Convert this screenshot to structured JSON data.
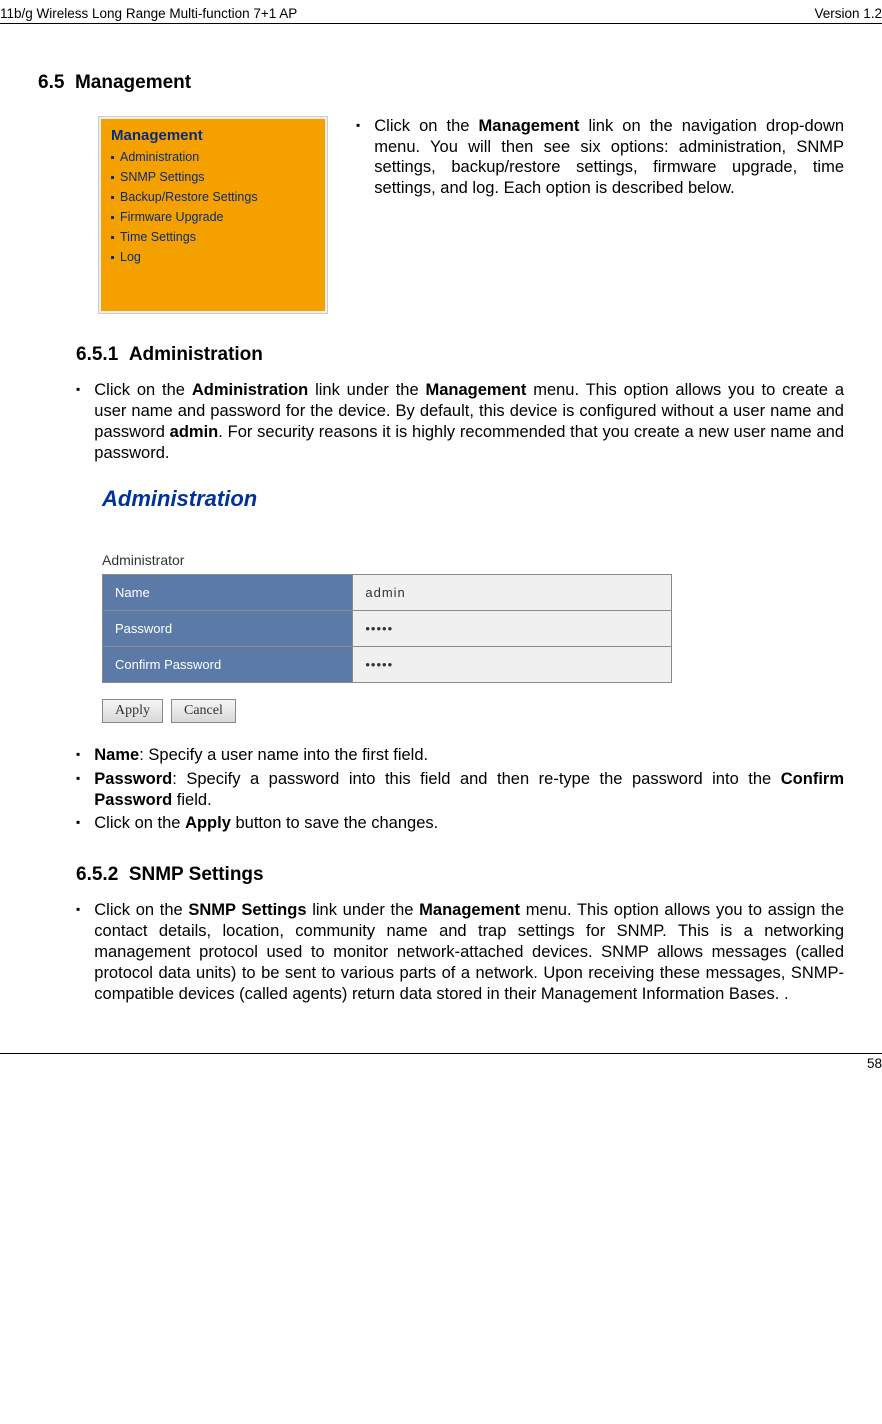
{
  "header": {
    "left": "11b/g Wireless Long Range Multi-function 7+1 AP",
    "right": "Version 1.2"
  },
  "footer": {
    "page": "58"
  },
  "sec65": {
    "num": "6.5",
    "title": "Management"
  },
  "mgmtBox": {
    "title": "Management",
    "items": [
      "Administration",
      "SNMP Settings",
      "Backup/Restore Settings",
      "Firmware Upgrade",
      "Time Settings",
      "Log"
    ]
  },
  "mgmtDesc": {
    "pre": "Click on the ",
    "b1": "Management",
    "post": " link on the navigation drop-down menu. You will then see six options: administration, SNMP settings, backup/restore settings, firmware upgrade, time settings, and log. Each option is described below."
  },
  "sec651": {
    "num": "6.5.1",
    "title": "Administration"
  },
  "p651": {
    "t1": "Click on the ",
    "b1": "Administration",
    "t2": " link under the ",
    "b2": "Management",
    "t3": " menu. This option allows you to create a user name and password for the device. By default, this device is configured without a user name and password ",
    "b3": "admin",
    "t4": ". For security reasons it is highly recommended that you create a new user name and password."
  },
  "adminShot": {
    "heading": "Administration",
    "sub": "Administrator",
    "rows": [
      {
        "label": "Name",
        "value": "admin"
      },
      {
        "label": "Password",
        "value": "•••••"
      },
      {
        "label": "Confirm Password",
        "value": "•••••"
      }
    ],
    "buttons": [
      "Apply",
      "Cancel"
    ],
    "colors": {
      "labelBg": "#5b7aa8",
      "valBg": "#f0f0f0",
      "border": "#8a8a8a",
      "heading": "#003399"
    }
  },
  "bullets651": [
    {
      "b": "Name",
      "t": ": Specify a user name into the first field."
    },
    {
      "b": "Password",
      "t": ": Specify a password into this field and then re-type the password into the ",
      "b2": "Confirm Password",
      "t2": " field."
    },
    {
      "plain": "Click on the ",
      "b": "Apply",
      "t": " button to save the changes."
    }
  ],
  "sec652": {
    "num": "6.5.2",
    "title": "SNMP Settings"
  },
  "p652": {
    "t1": "Click on the ",
    "b1": "SNMP Settings",
    "t2": " link under the ",
    "b2": "Management",
    "t3": " menu. This option allows you to assign the contact details, location, community name and trap settings for SNMP. This is a networking management protocol used to monitor network-attached devices. SNMP allows messages (called protocol data units) to be sent to various parts of a network. Upon receiving these messages, SNMP-compatible devices (called agents) return data stored in their Management Information Bases. ."
  }
}
